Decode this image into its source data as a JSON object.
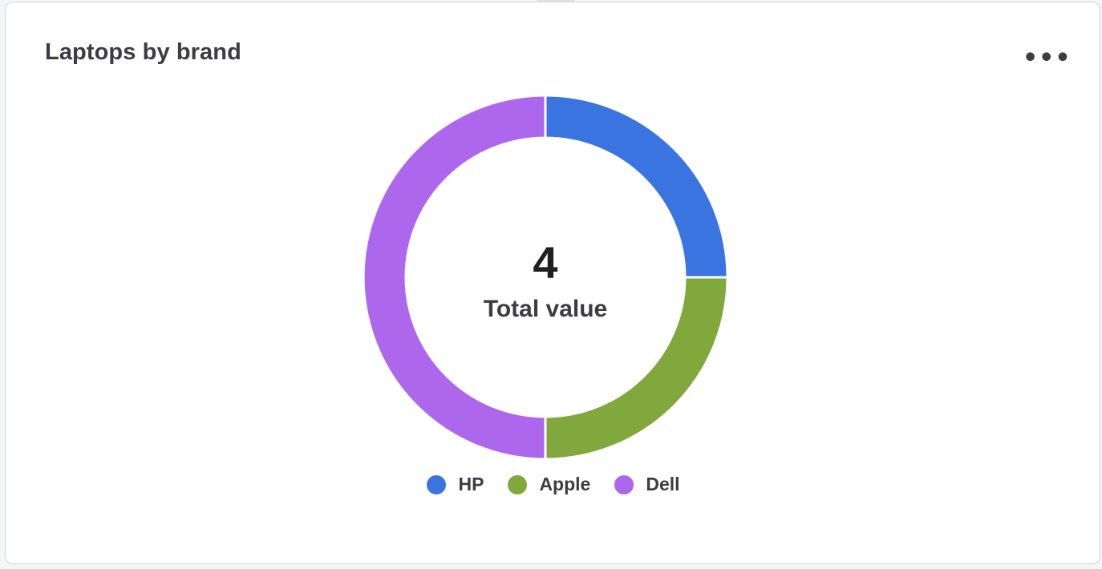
{
  "card": {
    "title": "Laptops by brand",
    "menu_label": "•••"
  },
  "chart_data": {
    "type": "pie",
    "variant": "donut",
    "categories": [
      "HP",
      "Apple",
      "Dell"
    ],
    "values": [
      1,
      1,
      2
    ],
    "colors": [
      "#3a74e0",
      "#81a83d",
      "#ad67ec"
    ],
    "center_value": "4",
    "center_label": "Total value",
    "legend_position": "bottom"
  }
}
